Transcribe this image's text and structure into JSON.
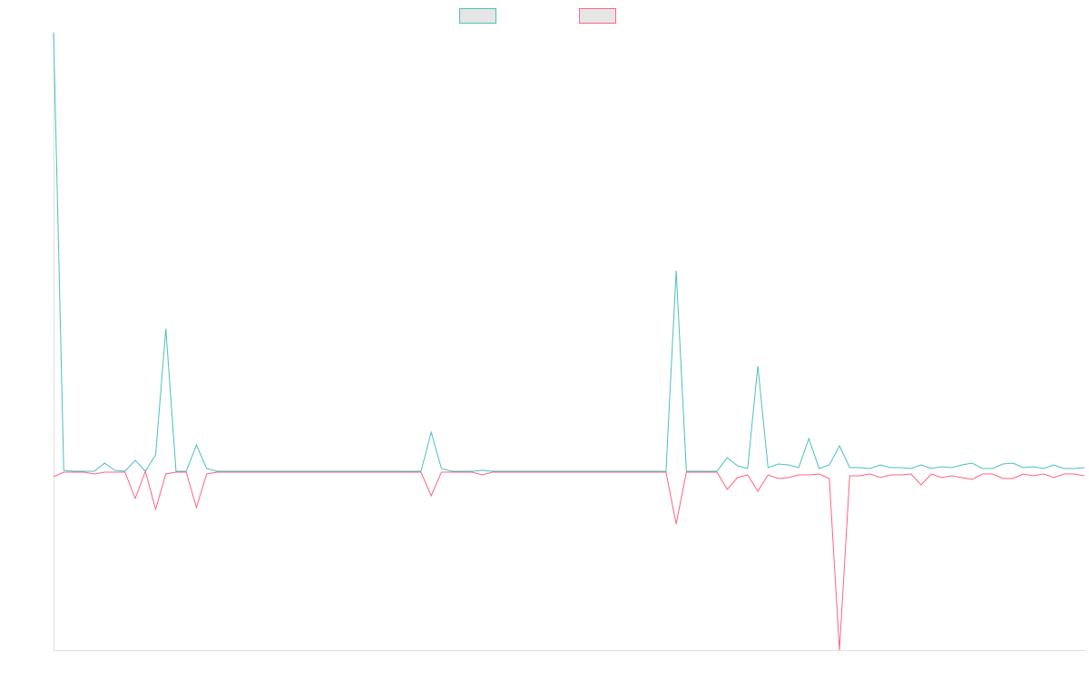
{
  "chart_data": {
    "type": "line",
    "categories": [
      null,
      null,
      null,
      null,
      null,
      null,
      null,
      null,
      null,
      null,
      null,
      null,
      null,
      null,
      null,
      null,
      null,
      null,
      null,
      null,
      null,
      null,
      null,
      null,
      null,
      null,
      null,
      null,
      null,
      null,
      null,
      null,
      null,
      null,
      null,
      null,
      null,
      null,
      null,
      null,
      null,
      null,
      null,
      null,
      null,
      null,
      null,
      null,
      null,
      null,
      null,
      null,
      null,
      null,
      null,
      null,
      null,
      null,
      null,
      null,
      null,
      null,
      null,
      null,
      null,
      null,
      null,
      null,
      null,
      null,
      null,
      null,
      null,
      null,
      null,
      null,
      null,
      null,
      null,
      null,
      null,
      null,
      null,
      null,
      null,
      null,
      null,
      null,
      null,
      null,
      null,
      null,
      null,
      null,
      null,
      null,
      null,
      null,
      null,
      null,
      null,
      null
    ],
    "series": [
      {
        "color": "#4bc0c0",
        "values": [
          483,
          1,
          0,
          0,
          0,
          9,
          1,
          0,
          12,
          0,
          18,
          157,
          0,
          0,
          29,
          3,
          0,
          0,
          0,
          0,
          0,
          0,
          0,
          0,
          0,
          0,
          0,
          0,
          0,
          0,
          0,
          0,
          0,
          0,
          0,
          0,
          0,
          43,
          3,
          0,
          0,
          0,
          1,
          0,
          0,
          0,
          0,
          0,
          0,
          0,
          0,
          0,
          0,
          0,
          0,
          0,
          0,
          0,
          0,
          0,
          0,
          221,
          0,
          0,
          0,
          0,
          15,
          6,
          3,
          116,
          4,
          8,
          7,
          4,
          36,
          3,
          7,
          28,
          4,
          4,
          3,
          7,
          4,
          4,
          3,
          7,
          3,
          5,
          4,
          7,
          9,
          3,
          3,
          8,
          9,
          4,
          5,
          3,
          7,
          3,
          3,
          4
        ]
      },
      {
        "color": "#ff6384",
        "values": [
          -6,
          -1,
          -1,
          -1,
          -3,
          -1,
          -1,
          -1,
          -30,
          0,
          -42,
          -3,
          -1,
          -1,
          -40,
          -3,
          -1,
          -1,
          -1,
          -1,
          -1,
          -1,
          -1,
          -1,
          -1,
          -1,
          -1,
          -1,
          -1,
          -1,
          -1,
          -1,
          -1,
          -1,
          -1,
          -1,
          -1,
          -27,
          -1,
          -1,
          -1,
          -1,
          -4,
          -1,
          -1,
          -1,
          -1,
          -1,
          -1,
          -1,
          -1,
          -1,
          -1,
          -1,
          -1,
          -1,
          -1,
          -1,
          -1,
          -1,
          -1,
          -58,
          -1,
          -1,
          -1,
          -1,
          -20,
          -7,
          -4,
          -22,
          -4,
          -8,
          -7,
          -4,
          -4,
          -3,
          -8,
          -197,
          -5,
          -5,
          -3,
          -7,
          -4,
          -4,
          -3,
          -15,
          -3,
          -7,
          -5,
          -7,
          -9,
          -3,
          -3,
          -8,
          -8,
          -3,
          -5,
          -3,
          -7,
          -3,
          -3,
          -5
        ]
      }
    ],
    "ylim": [
      -197,
      483
    ],
    "legend": "top"
  }
}
